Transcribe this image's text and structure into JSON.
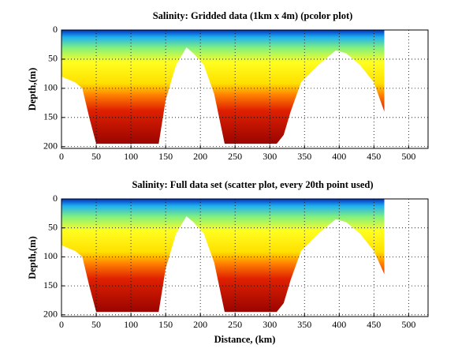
{
  "chart_data": [
    {
      "type": "area",
      "title": "Salinity: Gridded data (1km x 4m) (pcolor plot)",
      "ylabel": "Depth,(m)",
      "colormap": "jet",
      "invert_y": true,
      "grid": true,
      "x": [
        0,
        10,
        20,
        30,
        40,
        50,
        140,
        150,
        165,
        180,
        190,
        205,
        220,
        235,
        310,
        320,
        330,
        345,
        370,
        395,
        410,
        430,
        450,
        465
      ],
      "values": [
        80,
        85,
        90,
        100,
        150,
        195,
        195,
        120,
        60,
        30,
        40,
        60,
        110,
        195,
        195,
        180,
        140,
        90,
        60,
        35,
        40,
        60,
        90,
        140
      ],
      "xlim": [
        0,
        528
      ],
      "ylim": [
        0,
        203
      ],
      "xticks": [
        0,
        50,
        100,
        150,
        200,
        250,
        300,
        350,
        400,
        450,
        500
      ],
      "yticks": [
        0,
        50,
        100,
        150,
        200
      ]
    },
    {
      "type": "area",
      "title": "Salinity: Full data set (scatter plot, every 20th point used)",
      "ylabel": "Depth,(m)",
      "xlabel": "Distance, (km)",
      "colormap": "jet",
      "invert_y": true,
      "grid": true,
      "x": [
        0,
        10,
        20,
        30,
        40,
        50,
        140,
        150,
        165,
        180,
        190,
        205,
        220,
        235,
        310,
        320,
        330,
        345,
        370,
        395,
        410,
        430,
        450,
        465
      ],
      "values": [
        80,
        85,
        90,
        100,
        150,
        195,
        195,
        120,
        60,
        30,
        40,
        60,
        110,
        195,
        195,
        180,
        140,
        90,
        60,
        35,
        40,
        60,
        90,
        130
      ],
      "xlim": [
        0,
        528
      ],
      "ylim": [
        0,
        203
      ],
      "xticks": [
        0,
        50,
        100,
        150,
        200,
        250,
        300,
        350,
        400,
        450,
        500
      ],
      "yticks": [
        0,
        50,
        100,
        150,
        200
      ]
    }
  ]
}
